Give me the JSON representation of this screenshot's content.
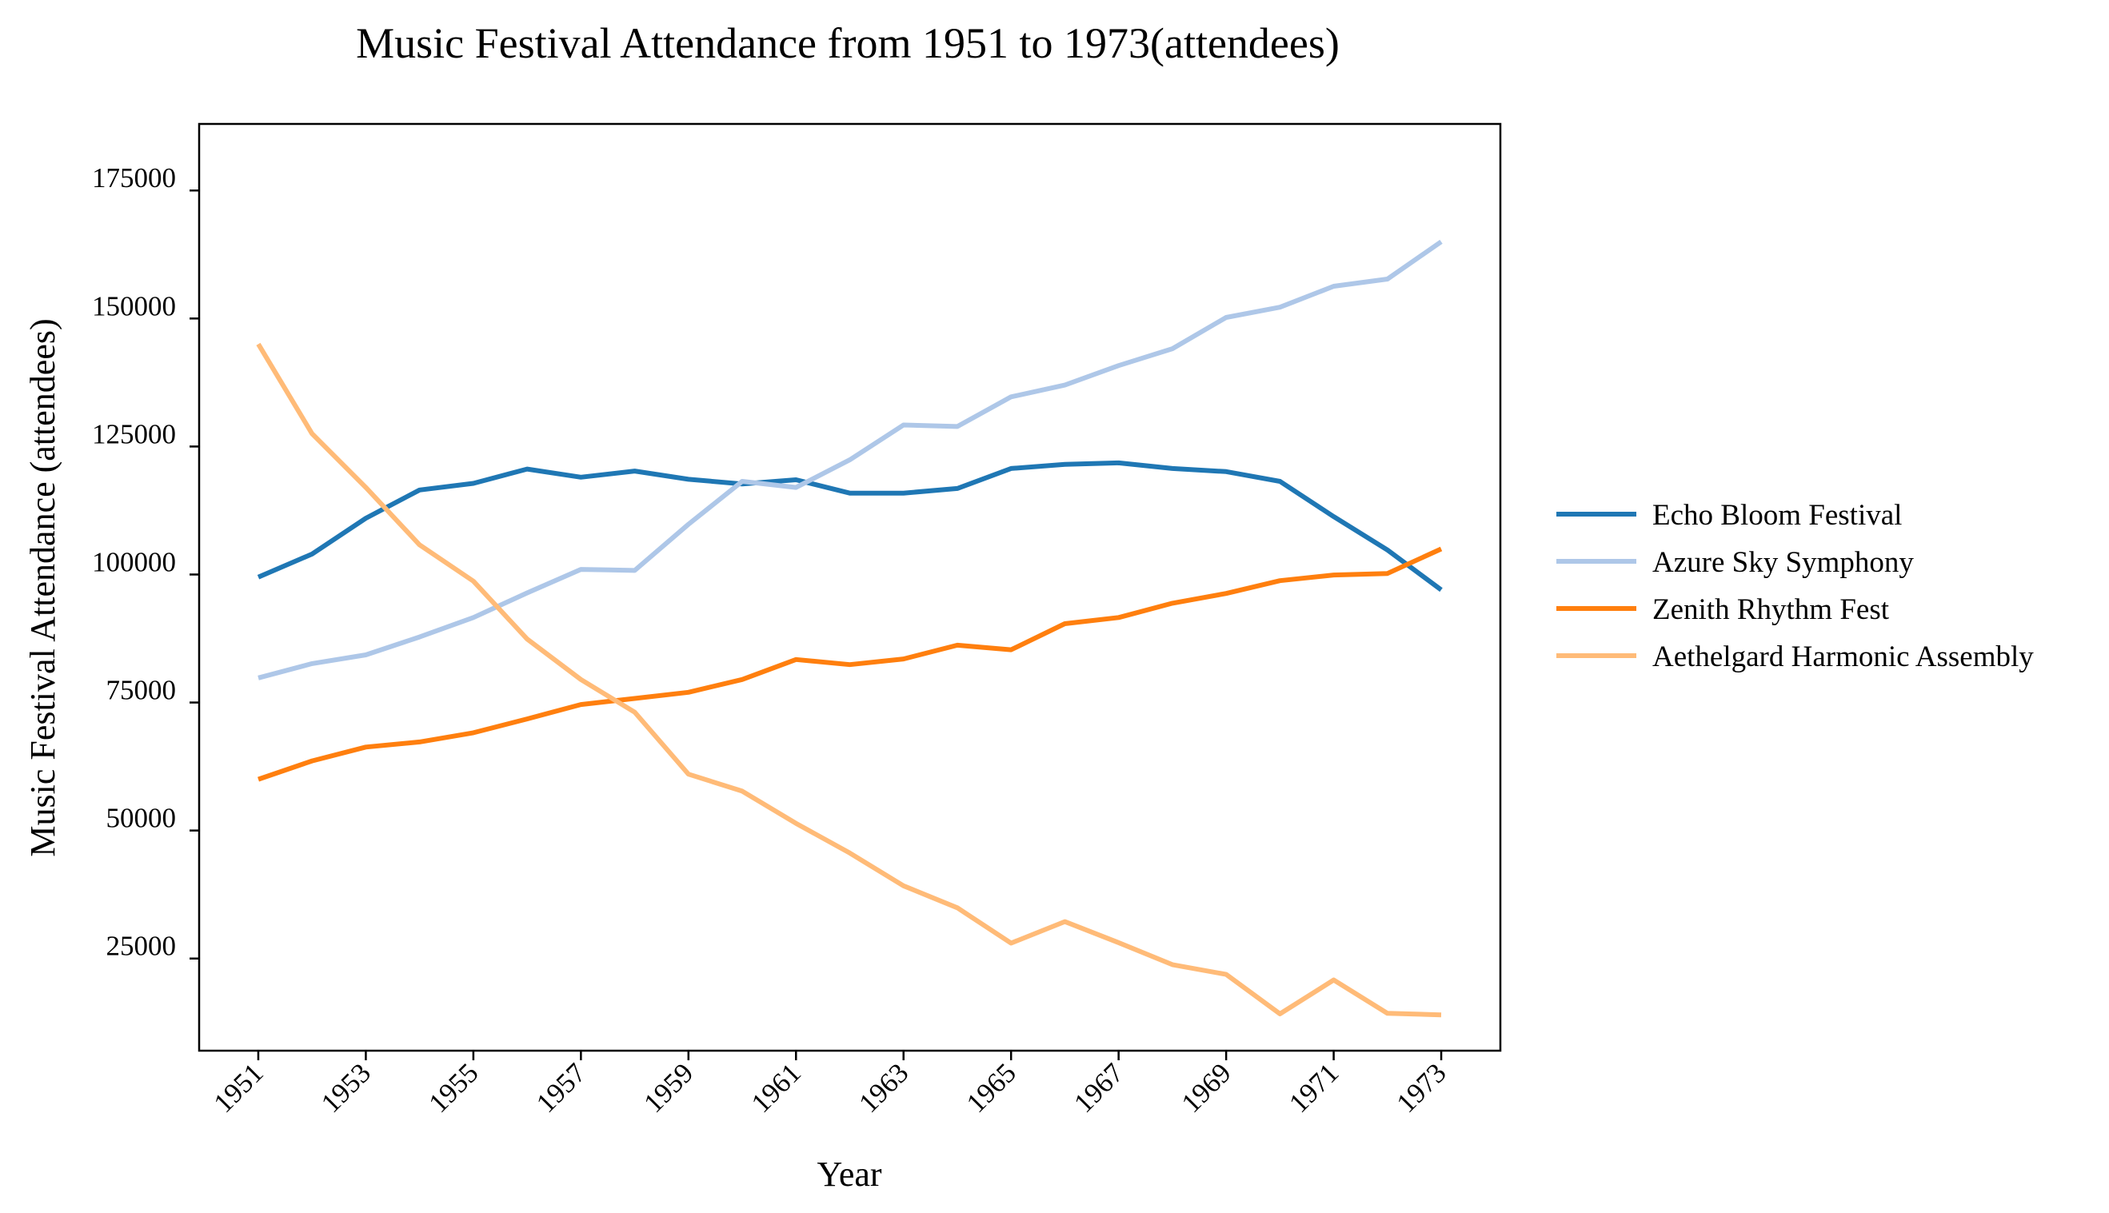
{
  "chart_data": {
    "type": "line",
    "title": "Music Festival Attendance from 1951 to 1973(attendees)",
    "xlabel": "Year",
    "ylabel": "Music Festival Attendance (attendees)",
    "x": [
      1951,
      1952,
      1953,
      1954,
      1955,
      1956,
      1957,
      1958,
      1959,
      1960,
      1961,
      1962,
      1963,
      1964,
      1965,
      1966,
      1967,
      1968,
      1969,
      1970,
      1971,
      1972,
      1973
    ],
    "x_ticks": [
      1951,
      1953,
      1955,
      1957,
      1959,
      1961,
      1963,
      1965,
      1967,
      1969,
      1971,
      1973
    ],
    "x_tick_labels": [
      "1951",
      "1953",
      "1955",
      "1957",
      "1959",
      "1961",
      "1963",
      "1965",
      "1967",
      "1969",
      "1971",
      "1973"
    ],
    "xlim": [
      1949.9,
      1974.1
    ],
    "ylim": [
      7000,
      188000
    ],
    "y_ticks": [
      25000,
      50000,
      75000,
      100000,
      125000,
      150000,
      175000
    ],
    "y_tick_labels": [
      "25000",
      "50000",
      "75000",
      "100000",
      "125000",
      "150000",
      "175000"
    ],
    "grid": false,
    "legend_position": "right",
    "series": [
      {
        "name": "Echo Bloom Festival",
        "color": "#1f77b4",
        "values": [
          99500,
          104000,
          111000,
          116500,
          117800,
          120600,
          119000,
          120200,
          118600,
          117700,
          118500,
          115900,
          115900,
          116800,
          120700,
          121500,
          121800,
          120700,
          120100,
          118200,
          111300,
          104800,
          97000
        ]
      },
      {
        "name": "Azure Sky Symphony",
        "color": "#aec7e8",
        "values": [
          79800,
          82600,
          84300,
          87800,
          91600,
          96400,
          101000,
          100800,
          109800,
          118200,
          117000,
          122400,
          129200,
          128900,
          134700,
          137000,
          140800,
          144100,
          150200,
          152200,
          156300,
          157700,
          165000
        ]
      },
      {
        "name": "Zenith Rhythm Fest",
        "color": "#ff7f0e",
        "values": [
          60000,
          63600,
          66300,
          67300,
          69100,
          71800,
          74600,
          75800,
          77000,
          79500,
          83400,
          82400,
          83500,
          86200,
          85300,
          90400,
          91600,
          94400,
          96300,
          98800,
          99900,
          100200,
          105000
        ]
      },
      {
        "name": "Aethelgard Harmonic Assembly",
        "color": "#ffbb78",
        "values": [
          145000,
          127500,
          117000,
          105800,
          98700,
          87400,
          79500,
          73100,
          61000,
          57700,
          51400,
          45600,
          39200,
          34900,
          28000,
          32200,
          28100,
          23800,
          21900,
          14200,
          20800,
          14300,
          14000
        ]
      }
    ]
  }
}
